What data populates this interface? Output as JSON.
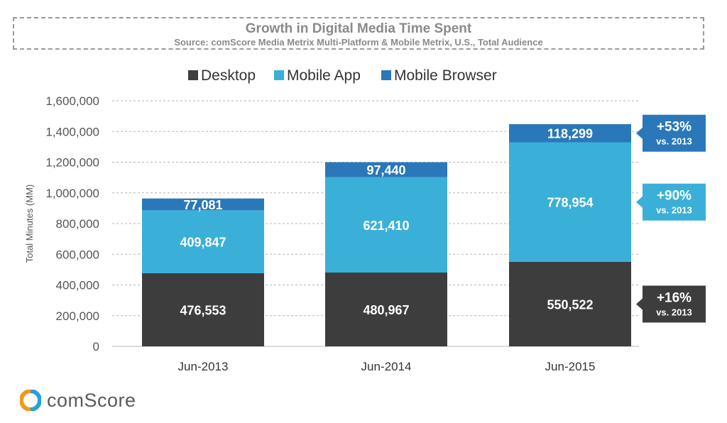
{
  "chart_data": {
    "type": "bar",
    "stacked": true,
    "title": "Growth in Digital Media Time Spent",
    "subtitle": "Source: comScore Media Metrix Multi-Platform & Mobile Metrix, U.S., Total Audience",
    "ylabel": "Total Minutes (MM)",
    "ylim": [
      0,
      1600000
    ],
    "yticks": [
      0,
      200000,
      400000,
      600000,
      800000,
      1000000,
      1200000,
      1400000,
      1600000
    ],
    "ytick_labels": [
      "0",
      "200,000",
      "400,000",
      "600,000",
      "800,000",
      "1,000,000",
      "1,200,000",
      "1,400,000",
      "1,600,000"
    ],
    "grid": true,
    "legend_position": "top",
    "categories": [
      "Jun-2013",
      "Jun-2014",
      "Jun-2015"
    ],
    "series": [
      {
        "name": "Desktop",
        "color": "#3d3d3d",
        "values": [
          476553,
          480967,
          550522
        ],
        "labels": [
          "476,553",
          "480,967",
          "550,522"
        ]
      },
      {
        "name": "Mobile App",
        "color": "#3ab0d8",
        "values": [
          409847,
          621410,
          778954
        ],
        "labels": [
          "409,847",
          "621,410",
          "778,954"
        ]
      },
      {
        "name": "Mobile Browser",
        "color": "#2a78b9",
        "values": [
          77081,
          97440,
          118299
        ],
        "labels": [
          "77,081",
          "97,440",
          "118,299"
        ]
      }
    ],
    "callouts": [
      {
        "series": "Mobile Browser",
        "line1": "+53%",
        "line2": "vs. 2013",
        "color": "#2a78b9"
      },
      {
        "series": "Mobile App",
        "line1": "+90%",
        "line2": "vs. 2013",
        "color": "#3ab0d8"
      },
      {
        "series": "Desktop",
        "line1": "+16%",
        "line2": "vs. 2013",
        "color": "#3d3d3d"
      }
    ]
  },
  "logo": {
    "text": "comScore",
    "icon": "comscore-logo-icon"
  }
}
